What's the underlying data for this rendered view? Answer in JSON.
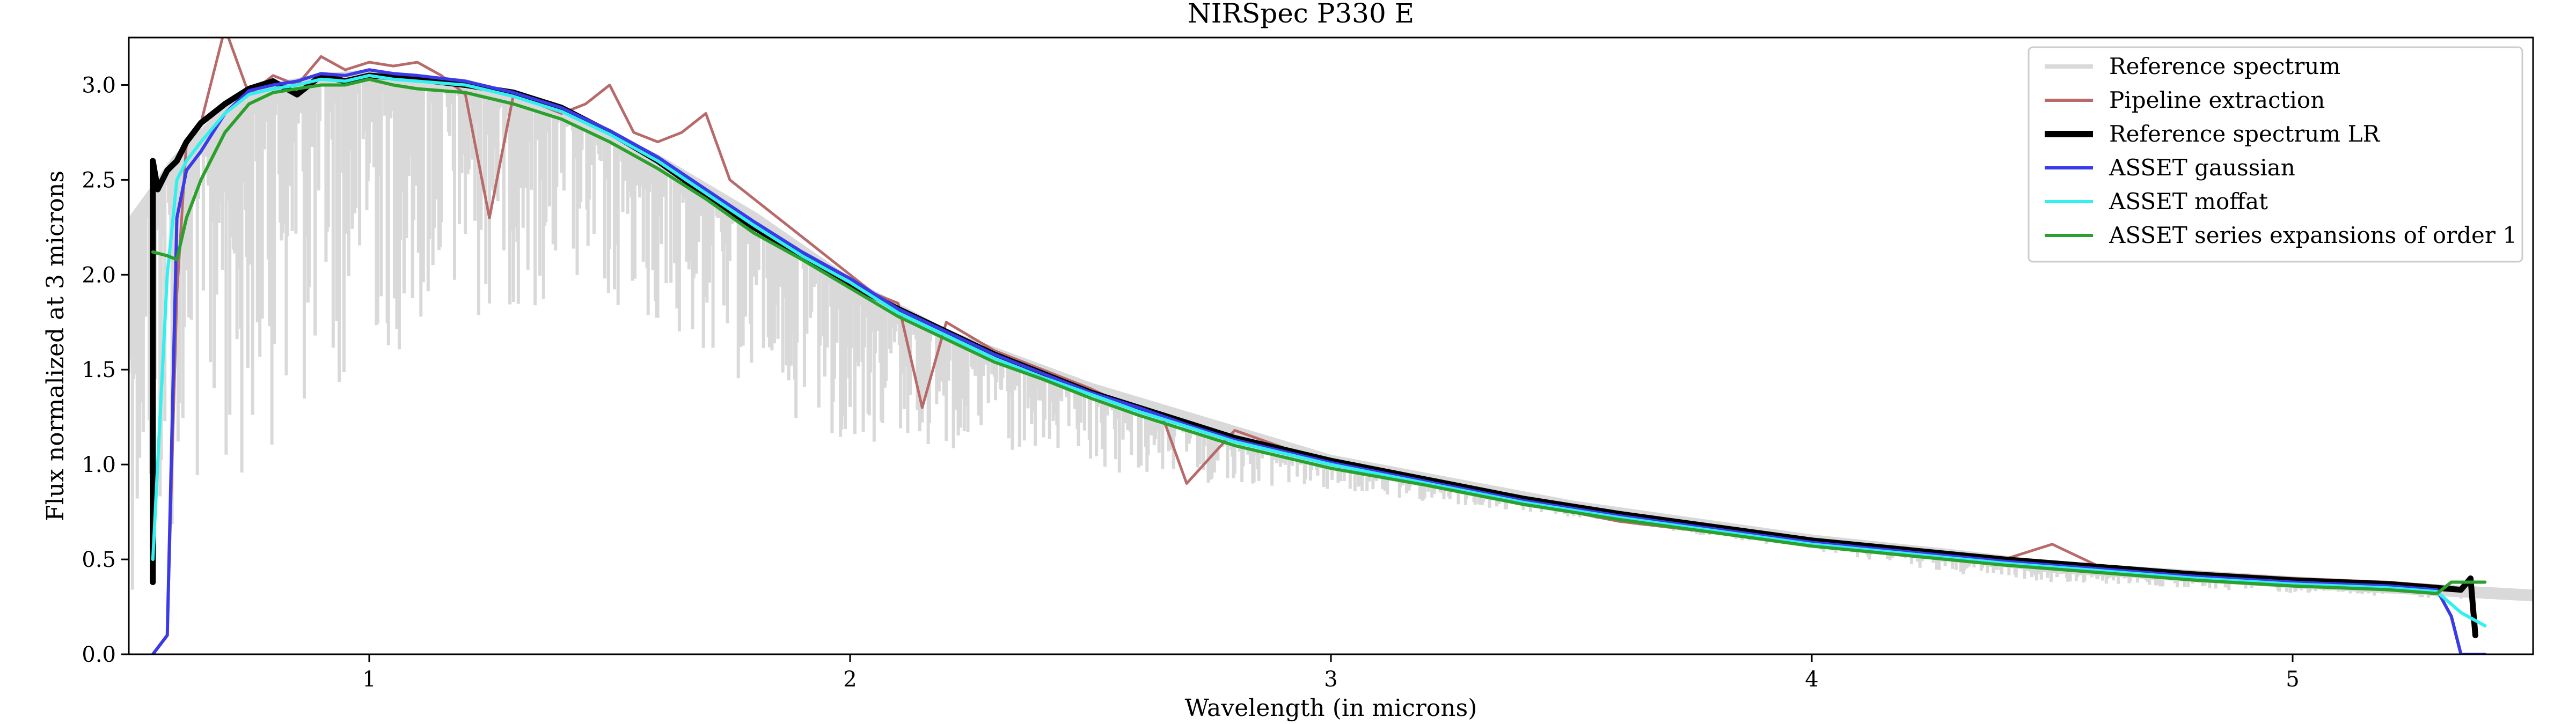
{
  "chart_data": {
    "type": "line",
    "title": "NIRSpec P330 E",
    "xlabel": "Wavelength (in microns)",
    "ylabel": "Flux normalized at 3 microns",
    "xlim": [
      0.5,
      5.5
    ],
    "ylim": [
      0.0,
      3.25
    ],
    "xticks": [
      1,
      2,
      3,
      4,
      5
    ],
    "xtick_labels": [
      "1",
      "2",
      "3",
      "4",
      "5"
    ],
    "yticks": [
      0.0,
      0.5,
      1.0,
      1.5,
      2.0,
      2.5,
      3.0
    ],
    "ytick_labels": [
      "0.0",
      "0.5",
      "1.0",
      "1.5",
      "2.0",
      "2.5",
      "3.0"
    ],
    "grid": false,
    "legend_position": "top-right",
    "series": [
      {
        "name": "Reference spectrum",
        "color": "#d9d9d9",
        "style": "filled-absorption",
        "x": [
          0.5,
          0.6,
          0.7,
          0.8,
          0.9,
          1.0,
          1.2,
          1.4,
          1.6,
          1.8,
          2.0,
          2.2,
          2.5,
          3.0,
          3.5,
          4.0,
          4.3,
          4.5,
          5.0,
          5.5
        ],
        "y": [
          2.25,
          2.6,
          2.85,
          2.98,
          3.03,
          3.05,
          3.0,
          2.85,
          2.6,
          2.3,
          1.95,
          1.68,
          1.4,
          1.02,
          0.78,
          0.6,
          0.52,
          0.46,
          0.38,
          0.31
        ],
        "lower_envelope": [
          0.3,
          0.6,
          0.85,
          1.1,
          1.3,
          1.5,
          1.75,
          1.85,
          1.7,
          1.35,
          1.1,
          1.05,
          0.95,
          0.85,
          0.72,
          0.55,
          0.42,
          0.38,
          0.32,
          0.28
        ]
      },
      {
        "name": "Pipeline extraction",
        "color": "#b8696a",
        "x": [
          0.58,
          0.6,
          0.62,
          0.65,
          0.7,
          0.75,
          0.8,
          0.85,
          0.9,
          0.95,
          1.0,
          1.05,
          1.1,
          1.15,
          1.2,
          1.25,
          1.3,
          1.35,
          1.4,
          1.45,
          1.5,
          1.55,
          1.6,
          1.65,
          1.7,
          1.75,
          1.8,
          1.85,
          1.9,
          1.95,
          2.0,
          2.05,
          2.1,
          2.15,
          2.2,
          2.3,
          2.4,
          2.5,
          2.6,
          2.65,
          2.7,
          2.8,
          3.0,
          3.2,
          3.4,
          3.6,
          3.8,
          4.0,
          4.2,
          4.4,
          4.5,
          4.6,
          4.8,
          5.0,
          5.2,
          5.3,
          5.34
        ],
        "y": [
          0.1,
          1.9,
          2.7,
          2.8,
          3.3,
          2.95,
          3.05,
          3.0,
          3.15,
          3.08,
          3.12,
          3.1,
          3.12,
          3.05,
          2.95,
          2.3,
          2.95,
          2.9,
          2.85,
          2.9,
          3.0,
          2.75,
          2.7,
          2.75,
          2.85,
          2.5,
          2.4,
          2.3,
          2.2,
          2.1,
          2.0,
          1.9,
          1.85,
          1.3,
          1.75,
          1.6,
          1.5,
          1.4,
          1.28,
          1.25,
          0.9,
          1.18,
          1.0,
          0.9,
          0.8,
          0.7,
          0.64,
          0.6,
          0.52,
          0.5,
          0.58,
          0.46,
          0.43,
          0.4,
          0.38,
          0.36,
          0.34
        ]
      },
      {
        "name": "Reference spectrum LR",
        "color": "#000000",
        "x": [
          0.55,
          0.55,
          0.56,
          0.58,
          0.6,
          0.62,
          0.65,
          0.7,
          0.75,
          0.8,
          0.85,
          0.9,
          0.95,
          1.0,
          1.05,
          1.1,
          1.2,
          1.3,
          1.4,
          1.5,
          1.6,
          1.7,
          1.8,
          1.9,
          2.0,
          2.1,
          2.2,
          2.3,
          2.4,
          2.5,
          2.6,
          2.7,
          2.8,
          2.9,
          3.0,
          3.2,
          3.4,
          3.6,
          3.8,
          4.0,
          4.2,
          4.4,
          4.6,
          4.8,
          5.0,
          5.2,
          5.3,
          5.35,
          5.37,
          5.38
        ],
        "y": [
          0.38,
          2.6,
          2.45,
          2.55,
          2.6,
          2.7,
          2.8,
          2.9,
          2.98,
          3.02,
          2.95,
          3.05,
          3.02,
          3.05,
          3.04,
          3.03,
          3.0,
          2.96,
          2.88,
          2.75,
          2.6,
          2.42,
          2.25,
          2.1,
          1.95,
          1.82,
          1.7,
          1.58,
          1.48,
          1.38,
          1.3,
          1.22,
          1.14,
          1.08,
          1.02,
          0.92,
          0.82,
          0.74,
          0.67,
          0.6,
          0.55,
          0.5,
          0.46,
          0.42,
          0.39,
          0.37,
          0.35,
          0.34,
          0.4,
          0.1
        ]
      },
      {
        "name": "ASSET gaussian",
        "color": "#3a3ae8",
        "x": [
          0.55,
          0.58,
          0.6,
          0.62,
          0.65,
          0.7,
          0.75,
          0.8,
          0.85,
          0.9,
          0.95,
          1.0,
          1.05,
          1.1,
          1.2,
          1.3,
          1.4,
          1.5,
          1.6,
          1.7,
          1.8,
          1.9,
          2.0,
          2.1,
          2.2,
          2.3,
          2.4,
          2.5,
          2.6,
          2.7,
          2.8,
          2.9,
          3.0,
          3.2,
          3.4,
          3.6,
          3.8,
          4.0,
          4.2,
          4.4,
          4.6,
          4.8,
          5.0,
          5.2,
          5.3,
          5.33,
          5.35,
          5.4
        ],
        "y": [
          0.0,
          0.1,
          2.3,
          2.55,
          2.65,
          2.85,
          2.97,
          3.0,
          3.02,
          3.06,
          3.05,
          3.08,
          3.06,
          3.05,
          3.02,
          2.96,
          2.88,
          2.76,
          2.62,
          2.45,
          2.28,
          2.12,
          1.98,
          1.82,
          1.7,
          1.58,
          1.48,
          1.38,
          1.3,
          1.21,
          1.13,
          1.07,
          1.01,
          0.91,
          0.81,
          0.73,
          0.66,
          0.59,
          0.54,
          0.49,
          0.45,
          0.41,
          0.38,
          0.36,
          0.34,
          0.2,
          0.0,
          0.0
        ]
      },
      {
        "name": "ASSET moffat",
        "color": "#33f0f0",
        "x": [
          0.55,
          0.58,
          0.6,
          0.62,
          0.65,
          0.7,
          0.75,
          0.8,
          0.85,
          0.9,
          0.95,
          1.0,
          1.05,
          1.1,
          1.2,
          1.3,
          1.4,
          1.5,
          1.6,
          1.7,
          1.8,
          1.9,
          2.0,
          2.1,
          2.2,
          2.3,
          2.4,
          2.5,
          2.6,
          2.7,
          2.8,
          2.9,
          3.0,
          3.2,
          3.4,
          3.6,
          3.8,
          4.0,
          4.2,
          4.4,
          4.6,
          4.8,
          5.0,
          5.2,
          5.3,
          5.35,
          5.4
        ],
        "y": [
          0.5,
          2.0,
          2.5,
          2.6,
          2.7,
          2.85,
          2.95,
          2.98,
          3.0,
          3.03,
          3.02,
          3.05,
          3.03,
          3.02,
          3.0,
          2.94,
          2.86,
          2.74,
          2.6,
          2.43,
          2.26,
          2.1,
          1.96,
          1.8,
          1.68,
          1.56,
          1.46,
          1.37,
          1.28,
          1.2,
          1.12,
          1.06,
          1.0,
          0.9,
          0.8,
          0.72,
          0.65,
          0.58,
          0.53,
          0.48,
          0.44,
          0.4,
          0.37,
          0.35,
          0.33,
          0.22,
          0.15
        ]
      },
      {
        "name": "ASSET series expansions of order 1",
        "color": "#2ca02c",
        "x": [
          0.55,
          0.58,
          0.6,
          0.62,
          0.65,
          0.7,
          0.75,
          0.8,
          0.85,
          0.9,
          0.95,
          1.0,
          1.05,
          1.1,
          1.2,
          1.3,
          1.4,
          1.5,
          1.6,
          1.7,
          1.8,
          1.9,
          2.0,
          2.1,
          2.2,
          2.3,
          2.4,
          2.5,
          2.6,
          2.7,
          2.8,
          2.9,
          3.0,
          3.2,
          3.4,
          3.6,
          3.8,
          4.0,
          4.2,
          4.4,
          4.6,
          4.8,
          5.0,
          5.2,
          5.3,
          5.33,
          5.4
        ],
        "y": [
          2.12,
          2.1,
          2.08,
          2.3,
          2.5,
          2.75,
          2.9,
          2.96,
          2.98,
          3.0,
          3.0,
          3.03,
          3.0,
          2.98,
          2.96,
          2.9,
          2.82,
          2.7,
          2.56,
          2.4,
          2.22,
          2.08,
          1.93,
          1.78,
          1.66,
          1.54,
          1.45,
          1.35,
          1.26,
          1.18,
          1.1,
          1.04,
          0.98,
          0.89,
          0.79,
          0.71,
          0.64,
          0.57,
          0.52,
          0.47,
          0.43,
          0.39,
          0.36,
          0.34,
          0.32,
          0.38,
          0.38
        ]
      }
    ]
  }
}
